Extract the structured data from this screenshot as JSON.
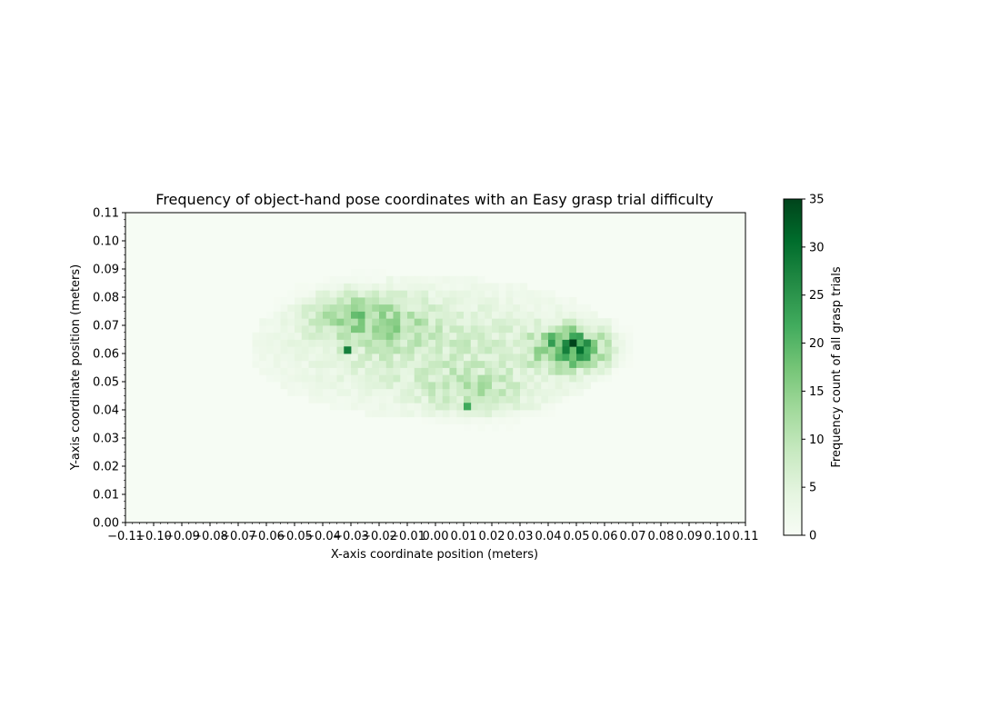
{
  "chart_data": {
    "type": "heatmap",
    "title": "Frequency of object-hand pose coordinates with an Easy grasp trial difficulty",
    "xlabel": "X-axis coordinate position (meters)",
    "ylabel": "Y-axis coordinate position (meters)",
    "xlim": [
      -0.11,
      0.11
    ],
    "ylim": [
      0.0,
      0.11
    ],
    "x_ticks": [
      "−0.11",
      "−0.10",
      "−0.09",
      "−0.08",
      "−0.07",
      "−0.06",
      "−0.05",
      "−0.04",
      "−0.03",
      "−0.02",
      "−0.01",
      "0.00",
      "0.01",
      "0.02",
      "0.03",
      "0.04",
      "0.05",
      "0.06",
      "0.07",
      "0.08",
      "0.09",
      "0.10",
      "0.11"
    ],
    "y_ticks": [
      "0.00",
      "0.01",
      "0.02",
      "0.03",
      "0.04",
      "0.05",
      "0.06",
      "0.07",
      "0.08",
      "0.09",
      "0.10",
      "0.11"
    ],
    "colorbar": {
      "label": "Frequency count of all grasp trials",
      "range": [
        0,
        35
      ],
      "ticks": [
        "0",
        "5",
        "10",
        "15",
        "20",
        "25",
        "30",
        "35"
      ],
      "colormap": "Greens",
      "low_color": "#f7fcf5",
      "high_color": "#00441b"
    },
    "bins": {
      "x_bin_width": 0.0025,
      "y_bin_width": 0.0025
    },
    "density_regions": [
      {
        "description": "broad cluster",
        "x_range": [
          -0.06,
          0.06
        ],
        "y_range": [
          0.033,
          0.085
        ],
        "typical_count": 8
      },
      {
        "description": "peak cluster",
        "x_center": 0.05,
        "y_center": 0.062,
        "peak_count": 35
      },
      {
        "description": "upper-left cluster",
        "x_center": -0.025,
        "y_center": 0.074,
        "typical_count": 18
      }
    ]
  }
}
